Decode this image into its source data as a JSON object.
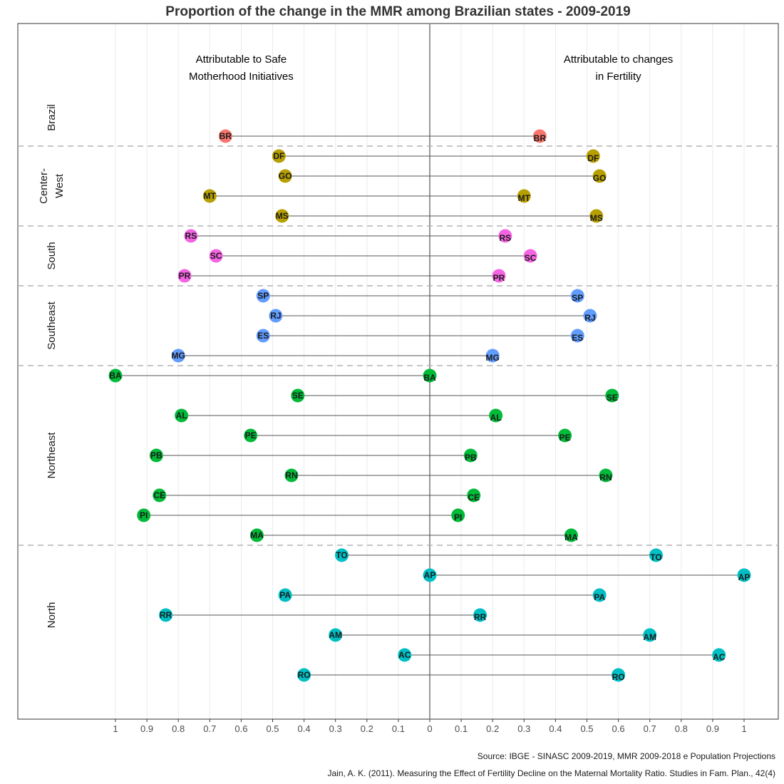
{
  "title": "Proportion of the change in the MMR among Brazilian states - 2009-2019",
  "annotations": {
    "left": [
      "Attributable to Safe",
      "Motherhood Initiatives"
    ],
    "right": [
      "Attributable to changes",
      "in Fertility"
    ]
  },
  "sources": [
    "Source: IBGE - SINASC 2009-2019, MMR 2009-2018 e Population Projections",
    "Jain, A. K. (2011). Measuring the Effect of Fertility Decline on the Maternal Mortality Ratio. Studies in Fam. Plan., 42(4)"
  ],
  "colors": {
    "Brazil": "#F8766D",
    "Center-West": "#B79F00",
    "South": "#F564E3",
    "Southeast": "#619CFF",
    "Northeast": "#00BA38",
    "North": "#00BFC4"
  },
  "chart_data": {
    "type": "dumbbell",
    "x_axis": {
      "range": [
        -1,
        1
      ],
      "tick_labels": [
        "1",
        "0.9",
        "0.8",
        "0.7",
        "0.6",
        "0.5",
        "0.4",
        "0.3",
        "0.2",
        "0.1",
        "0",
        "0.1",
        "0.2",
        "0.3",
        "0.4",
        "0.5",
        "0.6",
        "0.7",
        "0.8",
        "0.9",
        "1"
      ]
    },
    "grid": true,
    "facets": [
      {
        "region": "Brazil",
        "label_lines": [
          "Brazil"
        ],
        "states": [
          {
            "state": "BR",
            "safe_motherhood": 0.65,
            "fertility": 0.35
          }
        ]
      },
      {
        "region": "Center-West",
        "label_lines": [
          "Center-",
          "West"
        ],
        "states": [
          {
            "state": "DF",
            "safe_motherhood": 0.48,
            "fertility": 0.52
          },
          {
            "state": "GO",
            "safe_motherhood": 0.46,
            "fertility": 0.54
          },
          {
            "state": "MT",
            "safe_motherhood": 0.7,
            "fertility": 0.3
          },
          {
            "state": "MS",
            "safe_motherhood": 0.47,
            "fertility": 0.53
          }
        ]
      },
      {
        "region": "South",
        "label_lines": [
          "South"
        ],
        "states": [
          {
            "state": "RS",
            "safe_motherhood": 0.76,
            "fertility": 0.24
          },
          {
            "state": "SC",
            "safe_motherhood": 0.68,
            "fertility": 0.32
          },
          {
            "state": "PR",
            "safe_motherhood": 0.78,
            "fertility": 0.22
          }
        ]
      },
      {
        "region": "Southeast",
        "label_lines": [
          "Southeast"
        ],
        "states": [
          {
            "state": "SP",
            "safe_motherhood": 0.53,
            "fertility": 0.47
          },
          {
            "state": "RJ",
            "safe_motherhood": 0.49,
            "fertility": 0.51
          },
          {
            "state": "ES",
            "safe_motherhood": 0.53,
            "fertility": 0.47
          },
          {
            "state": "MG",
            "safe_motherhood": 0.8,
            "fertility": 0.2
          }
        ]
      },
      {
        "region": "Northeast",
        "label_lines": [
          "Northeast"
        ],
        "states": [
          {
            "state": "BA",
            "safe_motherhood": 1.0,
            "fertility": 0.0
          },
          {
            "state": "SE",
            "safe_motherhood": 0.42,
            "fertility": 0.58
          },
          {
            "state": "AL",
            "safe_motherhood": 0.79,
            "fertility": 0.21
          },
          {
            "state": "PE",
            "safe_motherhood": 0.57,
            "fertility": 0.43
          },
          {
            "state": "PB",
            "safe_motherhood": 0.87,
            "fertility": 0.13
          },
          {
            "state": "RN",
            "safe_motherhood": 0.44,
            "fertility": 0.56
          },
          {
            "state": "CE",
            "safe_motherhood": 0.86,
            "fertility": 0.14
          },
          {
            "state": "PI",
            "safe_motherhood": 0.91,
            "fertility": 0.09
          },
          {
            "state": "MA",
            "safe_motherhood": 0.55,
            "fertility": 0.45
          }
        ]
      },
      {
        "region": "North",
        "label_lines": [
          "North"
        ],
        "states": [
          {
            "state": "TO",
            "safe_motherhood": 0.28,
            "fertility": 0.72
          },
          {
            "state": "AP",
            "safe_motherhood": 0.0,
            "fertility": 1.0
          },
          {
            "state": "PA",
            "safe_motherhood": 0.46,
            "fertility": 0.54
          },
          {
            "state": "RR",
            "safe_motherhood": 0.84,
            "fertility": 0.16
          },
          {
            "state": "AM",
            "safe_motherhood": 0.3,
            "fertility": 0.7
          },
          {
            "state": "AC",
            "safe_motherhood": 0.08,
            "fertility": 0.92
          },
          {
            "state": "RO",
            "safe_motherhood": 0.4,
            "fertility": 0.6
          }
        ]
      }
    ]
  }
}
